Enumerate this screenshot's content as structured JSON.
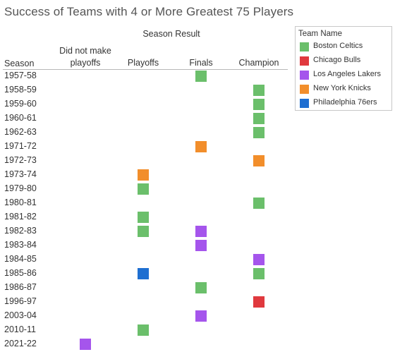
{
  "title": "Success of Teams with 4 or More Greatest 75 Players",
  "legend": {
    "title": "Team Name",
    "items": [
      {
        "label": "Boston Celtics",
        "color": "#6bbf6b"
      },
      {
        "label": "Chicago Bulls",
        "color": "#e0393e"
      },
      {
        "label": "Los Angeles Lakers",
        "color": "#a555ec"
      },
      {
        "label": "New York Knicks",
        "color": "#f28e2b"
      },
      {
        "label": "Philadelphia 76ers",
        "color": "#1f6fd1"
      }
    ]
  },
  "chart_data": {
    "type": "table",
    "column_group_label": "Season Result",
    "row_label": "Season",
    "columns": [
      "Did not make playoffs",
      "Playoffs",
      "Finals",
      "Champion"
    ],
    "rows": [
      "1957-58",
      "1958-59",
      "1959-60",
      "1960-61",
      "1962-63",
      "1971-72",
      "1972-73",
      "1973-74",
      "1979-80",
      "1980-81",
      "1981-82",
      "1982-83",
      "1983-84",
      "1984-85",
      "1985-86",
      "1986-87",
      "1996-97",
      "2003-04",
      "2010-11",
      "2021-22"
    ],
    "entries": [
      {
        "season": "1957-58",
        "result": "Finals",
        "team": "Boston Celtics"
      },
      {
        "season": "1958-59",
        "result": "Champion",
        "team": "Boston Celtics"
      },
      {
        "season": "1959-60",
        "result": "Champion",
        "team": "Boston Celtics"
      },
      {
        "season": "1960-61",
        "result": "Champion",
        "team": "Boston Celtics"
      },
      {
        "season": "1962-63",
        "result": "Champion",
        "team": "Boston Celtics"
      },
      {
        "season": "1971-72",
        "result": "Finals",
        "team": "New York Knicks"
      },
      {
        "season": "1972-73",
        "result": "Champion",
        "team": "New York Knicks"
      },
      {
        "season": "1973-74",
        "result": "Playoffs",
        "team": "New York Knicks"
      },
      {
        "season": "1979-80",
        "result": "Playoffs",
        "team": "Boston Celtics"
      },
      {
        "season": "1980-81",
        "result": "Champion",
        "team": "Boston Celtics"
      },
      {
        "season": "1981-82",
        "result": "Playoffs",
        "team": "Boston Celtics"
      },
      {
        "season": "1982-83",
        "result": "Playoffs",
        "team": "Boston Celtics"
      },
      {
        "season": "1982-83",
        "result": "Finals",
        "team": "Los Angeles Lakers"
      },
      {
        "season": "1983-84",
        "result": "Finals",
        "team": "Los Angeles Lakers"
      },
      {
        "season": "1984-85",
        "result": "Champion",
        "team": "Los Angeles Lakers"
      },
      {
        "season": "1985-86",
        "result": "Playoffs",
        "team": "Philadelphia 76ers"
      },
      {
        "season": "1985-86",
        "result": "Champion",
        "team": "Boston Celtics"
      },
      {
        "season": "1986-87",
        "result": "Finals",
        "team": "Boston Celtics"
      },
      {
        "season": "1996-97",
        "result": "Champion",
        "team": "Chicago Bulls"
      },
      {
        "season": "2003-04",
        "result": "Finals",
        "team": "Los Angeles Lakers"
      },
      {
        "season": "2010-11",
        "result": "Playoffs",
        "team": "Boston Celtics"
      },
      {
        "season": "2021-22",
        "result": "Did not make playoffs",
        "team": "Los Angeles Lakers"
      }
    ]
  }
}
